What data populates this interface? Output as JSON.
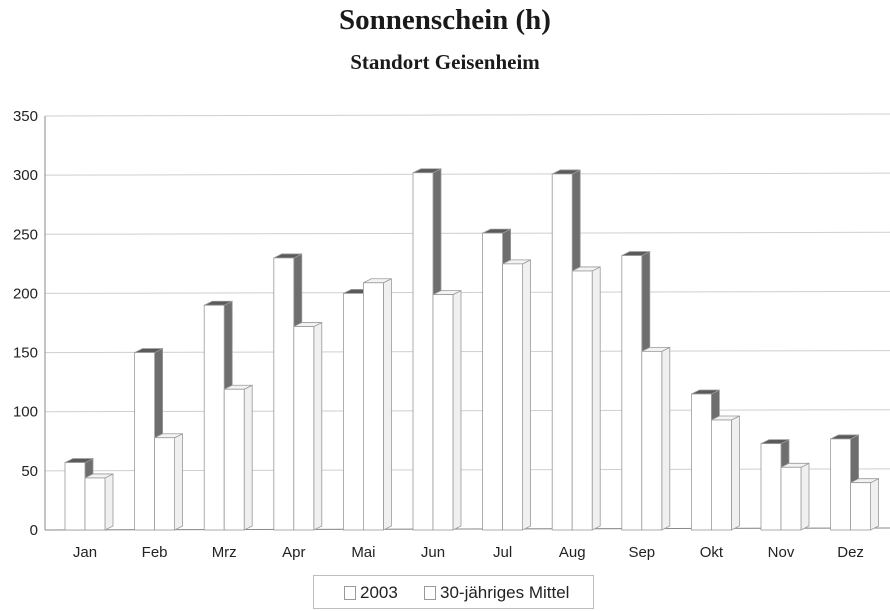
{
  "colors": {
    "bar_face": "#ffffff",
    "bar_top": "#f3f3f3",
    "bar_edge": "#9a9a9a",
    "side_2003": "#6e6e6e",
    "side_mittel": "#f0f0f0",
    "grid": "#cfcfcf"
  },
  "chart_data": {
    "type": "bar",
    "title": "Sonnenschein (h)",
    "subtitle": "Standort Geisenheim",
    "xlabel": "",
    "ylabel": "",
    "categories": [
      "Jan",
      "Feb",
      "Mrz",
      "Apr",
      "Mai",
      "Jun",
      "Jul",
      "Aug",
      "Sep",
      "Okt",
      "Nov",
      "Dez"
    ],
    "series": [
      {
        "name": "2003",
        "values": [
          57,
          150,
          190,
          230,
          200,
          302,
          251,
          301,
          232,
          115,
          73,
          77
        ]
      },
      {
        "name": "30-jähriges Mittel",
        "values": [
          44,
          78,
          119,
          172,
          209,
          199,
          225,
          219,
          151,
          93,
          53,
          40
        ]
      }
    ],
    "ylim": [
      0,
      350
    ],
    "yticks": [
      "0",
      "50",
      "100",
      "150",
      "200",
      "250",
      "300",
      "350"
    ],
    "grid": true,
    "legend": "bottom"
  }
}
